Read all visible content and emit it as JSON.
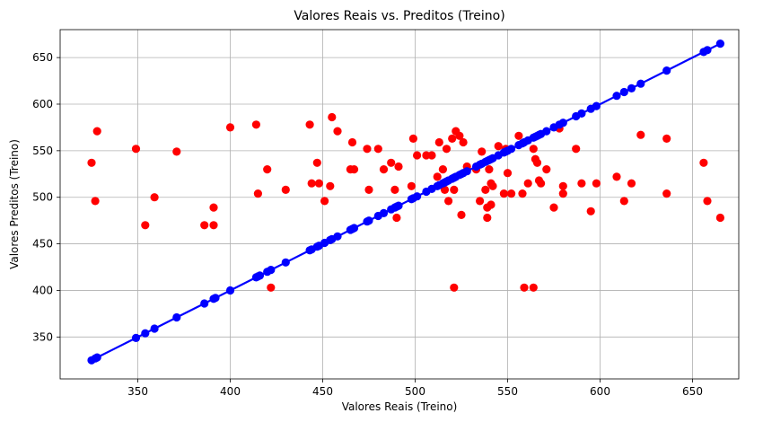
{
  "chart_data": {
    "type": "scatter",
    "title": "Valores Reais vs. Preditos (Treino)",
    "xlabel": "Valores Reais (Treino)",
    "ylabel": "Valores Preditos (Treino)",
    "xlim": [
      308,
      675
    ],
    "ylim": [
      305,
      680
    ],
    "xticks": [
      350,
      400,
      450,
      500,
      550,
      600,
      650
    ],
    "yticks": [
      350,
      400,
      450,
      500,
      550,
      600,
      650
    ],
    "grid": true,
    "series": [
      {
        "kind": "scatter",
        "color": "#ff0000",
        "points": [
          [
            325,
            537
          ],
          [
            327,
            496
          ],
          [
            328,
            571
          ],
          [
            349,
            552
          ],
          [
            354,
            470
          ],
          [
            359,
            500
          ],
          [
            371,
            549
          ],
          [
            386,
            470
          ],
          [
            391,
            470
          ],
          [
            391,
            489
          ],
          [
            400,
            575
          ],
          [
            414,
            578
          ],
          [
            415,
            504
          ],
          [
            420,
            530
          ],
          [
            422,
            403
          ],
          [
            430,
            508
          ],
          [
            443,
            578
          ],
          [
            444,
            515
          ],
          [
            447,
            537
          ],
          [
            448,
            515
          ],
          [
            451,
            496
          ],
          [
            454,
            512
          ],
          [
            455,
            586
          ],
          [
            458,
            571
          ],
          [
            465,
            530
          ],
          [
            466,
            559
          ],
          [
            467,
            530
          ],
          [
            474,
            552
          ],
          [
            475,
            508
          ],
          [
            480,
            552
          ],
          [
            483,
            530
          ],
          [
            487,
            537
          ],
          [
            489,
            508
          ],
          [
            490,
            478
          ],
          [
            491,
            533
          ],
          [
            498,
            512
          ],
          [
            499,
            563
          ],
          [
            501,
            545
          ],
          [
            506,
            545
          ],
          [
            509,
            545
          ],
          [
            512,
            522
          ],
          [
            513,
            559
          ],
          [
            515,
            530
          ],
          [
            516,
            508
          ],
          [
            517,
            552
          ],
          [
            518,
            496
          ],
          [
            520,
            563
          ],
          [
            521,
            508
          ],
          [
            521,
            403
          ],
          [
            522,
            571
          ],
          [
            524,
            566
          ],
          [
            525,
            481
          ],
          [
            526,
            559
          ],
          [
            528,
            533
          ],
          [
            533,
            530
          ],
          [
            535,
            496
          ],
          [
            536,
            549
          ],
          [
            538,
            508
          ],
          [
            539,
            489
          ],
          [
            539,
            478
          ],
          [
            540,
            530
          ],
          [
            541,
            515
          ],
          [
            541,
            492
          ],
          [
            542,
            512
          ],
          [
            545,
            555
          ],
          [
            548,
            504
          ],
          [
            549,
            552
          ],
          [
            550,
            526
          ],
          [
            552,
            504
          ],
          [
            556,
            566
          ],
          [
            558,
            504
          ],
          [
            559,
            403
          ],
          [
            561,
            515
          ],
          [
            564,
            552
          ],
          [
            564,
            403
          ],
          [
            565,
            541
          ],
          [
            566,
            537
          ],
          [
            567,
            518
          ],
          [
            568,
            515
          ],
          [
            571,
            530
          ],
          [
            575,
            489
          ],
          [
            578,
            574
          ],
          [
            580,
            512
          ],
          [
            580,
            504
          ],
          [
            587,
            552
          ],
          [
            590,
            515
          ],
          [
            595,
            485
          ],
          [
            598,
            515
          ],
          [
            609,
            522
          ],
          [
            613,
            496
          ],
          [
            617,
            515
          ],
          [
            622,
            567
          ],
          [
            636,
            563
          ],
          [
            636,
            504
          ],
          [
            656,
            537
          ],
          [
            658,
            496
          ],
          [
            665,
            478
          ]
        ]
      },
      {
        "kind": "scatter-line",
        "color": "#0000ff",
        "points": [
          [
            325,
            325
          ],
          [
            327,
            327
          ],
          [
            328,
            328
          ],
          [
            349,
            349
          ],
          [
            354,
            354
          ],
          [
            359,
            359
          ],
          [
            371,
            371
          ],
          [
            386,
            386
          ],
          [
            391,
            391
          ],
          [
            392,
            392
          ],
          [
            400,
            400
          ],
          [
            414,
            414
          ],
          [
            415,
            415
          ],
          [
            416,
            416
          ],
          [
            420,
            420
          ],
          [
            422,
            422
          ],
          [
            430,
            430
          ],
          [
            443,
            443
          ],
          [
            444,
            444
          ],
          [
            447,
            447
          ],
          [
            448,
            448
          ],
          [
            451,
            451
          ],
          [
            454,
            454
          ],
          [
            455,
            455
          ],
          [
            458,
            458
          ],
          [
            465,
            465
          ],
          [
            466,
            466
          ],
          [
            467,
            467
          ],
          [
            474,
            474
          ],
          [
            475,
            475
          ],
          [
            480,
            480
          ],
          [
            483,
            483
          ],
          [
            487,
            487
          ],
          [
            489,
            489
          ],
          [
            490,
            490
          ],
          [
            491,
            491
          ],
          [
            498,
            498
          ],
          [
            499,
            499
          ],
          [
            501,
            501
          ],
          [
            506,
            506
          ],
          [
            509,
            509
          ],
          [
            512,
            512
          ],
          [
            513,
            513
          ],
          [
            515,
            515
          ],
          [
            516,
            516
          ],
          [
            517,
            517
          ],
          [
            518,
            518
          ],
          [
            520,
            520
          ],
          [
            521,
            521
          ],
          [
            522,
            522
          ],
          [
            524,
            524
          ],
          [
            525,
            525
          ],
          [
            526,
            526
          ],
          [
            528,
            528
          ],
          [
            533,
            533
          ],
          [
            535,
            535
          ],
          [
            536,
            536
          ],
          [
            538,
            538
          ],
          [
            539,
            539
          ],
          [
            540,
            540
          ],
          [
            541,
            541
          ],
          [
            542,
            542
          ],
          [
            545,
            545
          ],
          [
            548,
            548
          ],
          [
            549,
            549
          ],
          [
            550,
            550
          ],
          [
            552,
            552
          ],
          [
            556,
            556
          ],
          [
            558,
            558
          ],
          [
            559,
            559
          ],
          [
            561,
            561
          ],
          [
            564,
            564
          ],
          [
            565,
            565
          ],
          [
            566,
            566
          ],
          [
            567,
            567
          ],
          [
            568,
            568
          ],
          [
            571,
            571
          ],
          [
            575,
            575
          ],
          [
            578,
            578
          ],
          [
            580,
            580
          ],
          [
            587,
            587
          ],
          [
            590,
            590
          ],
          [
            595,
            595
          ],
          [
            598,
            598
          ],
          [
            609,
            609
          ],
          [
            613,
            613
          ],
          [
            617,
            617
          ],
          [
            622,
            622
          ],
          [
            636,
            636
          ],
          [
            656,
            656
          ],
          [
            658,
            658
          ],
          [
            665,
            665
          ]
        ]
      }
    ]
  }
}
